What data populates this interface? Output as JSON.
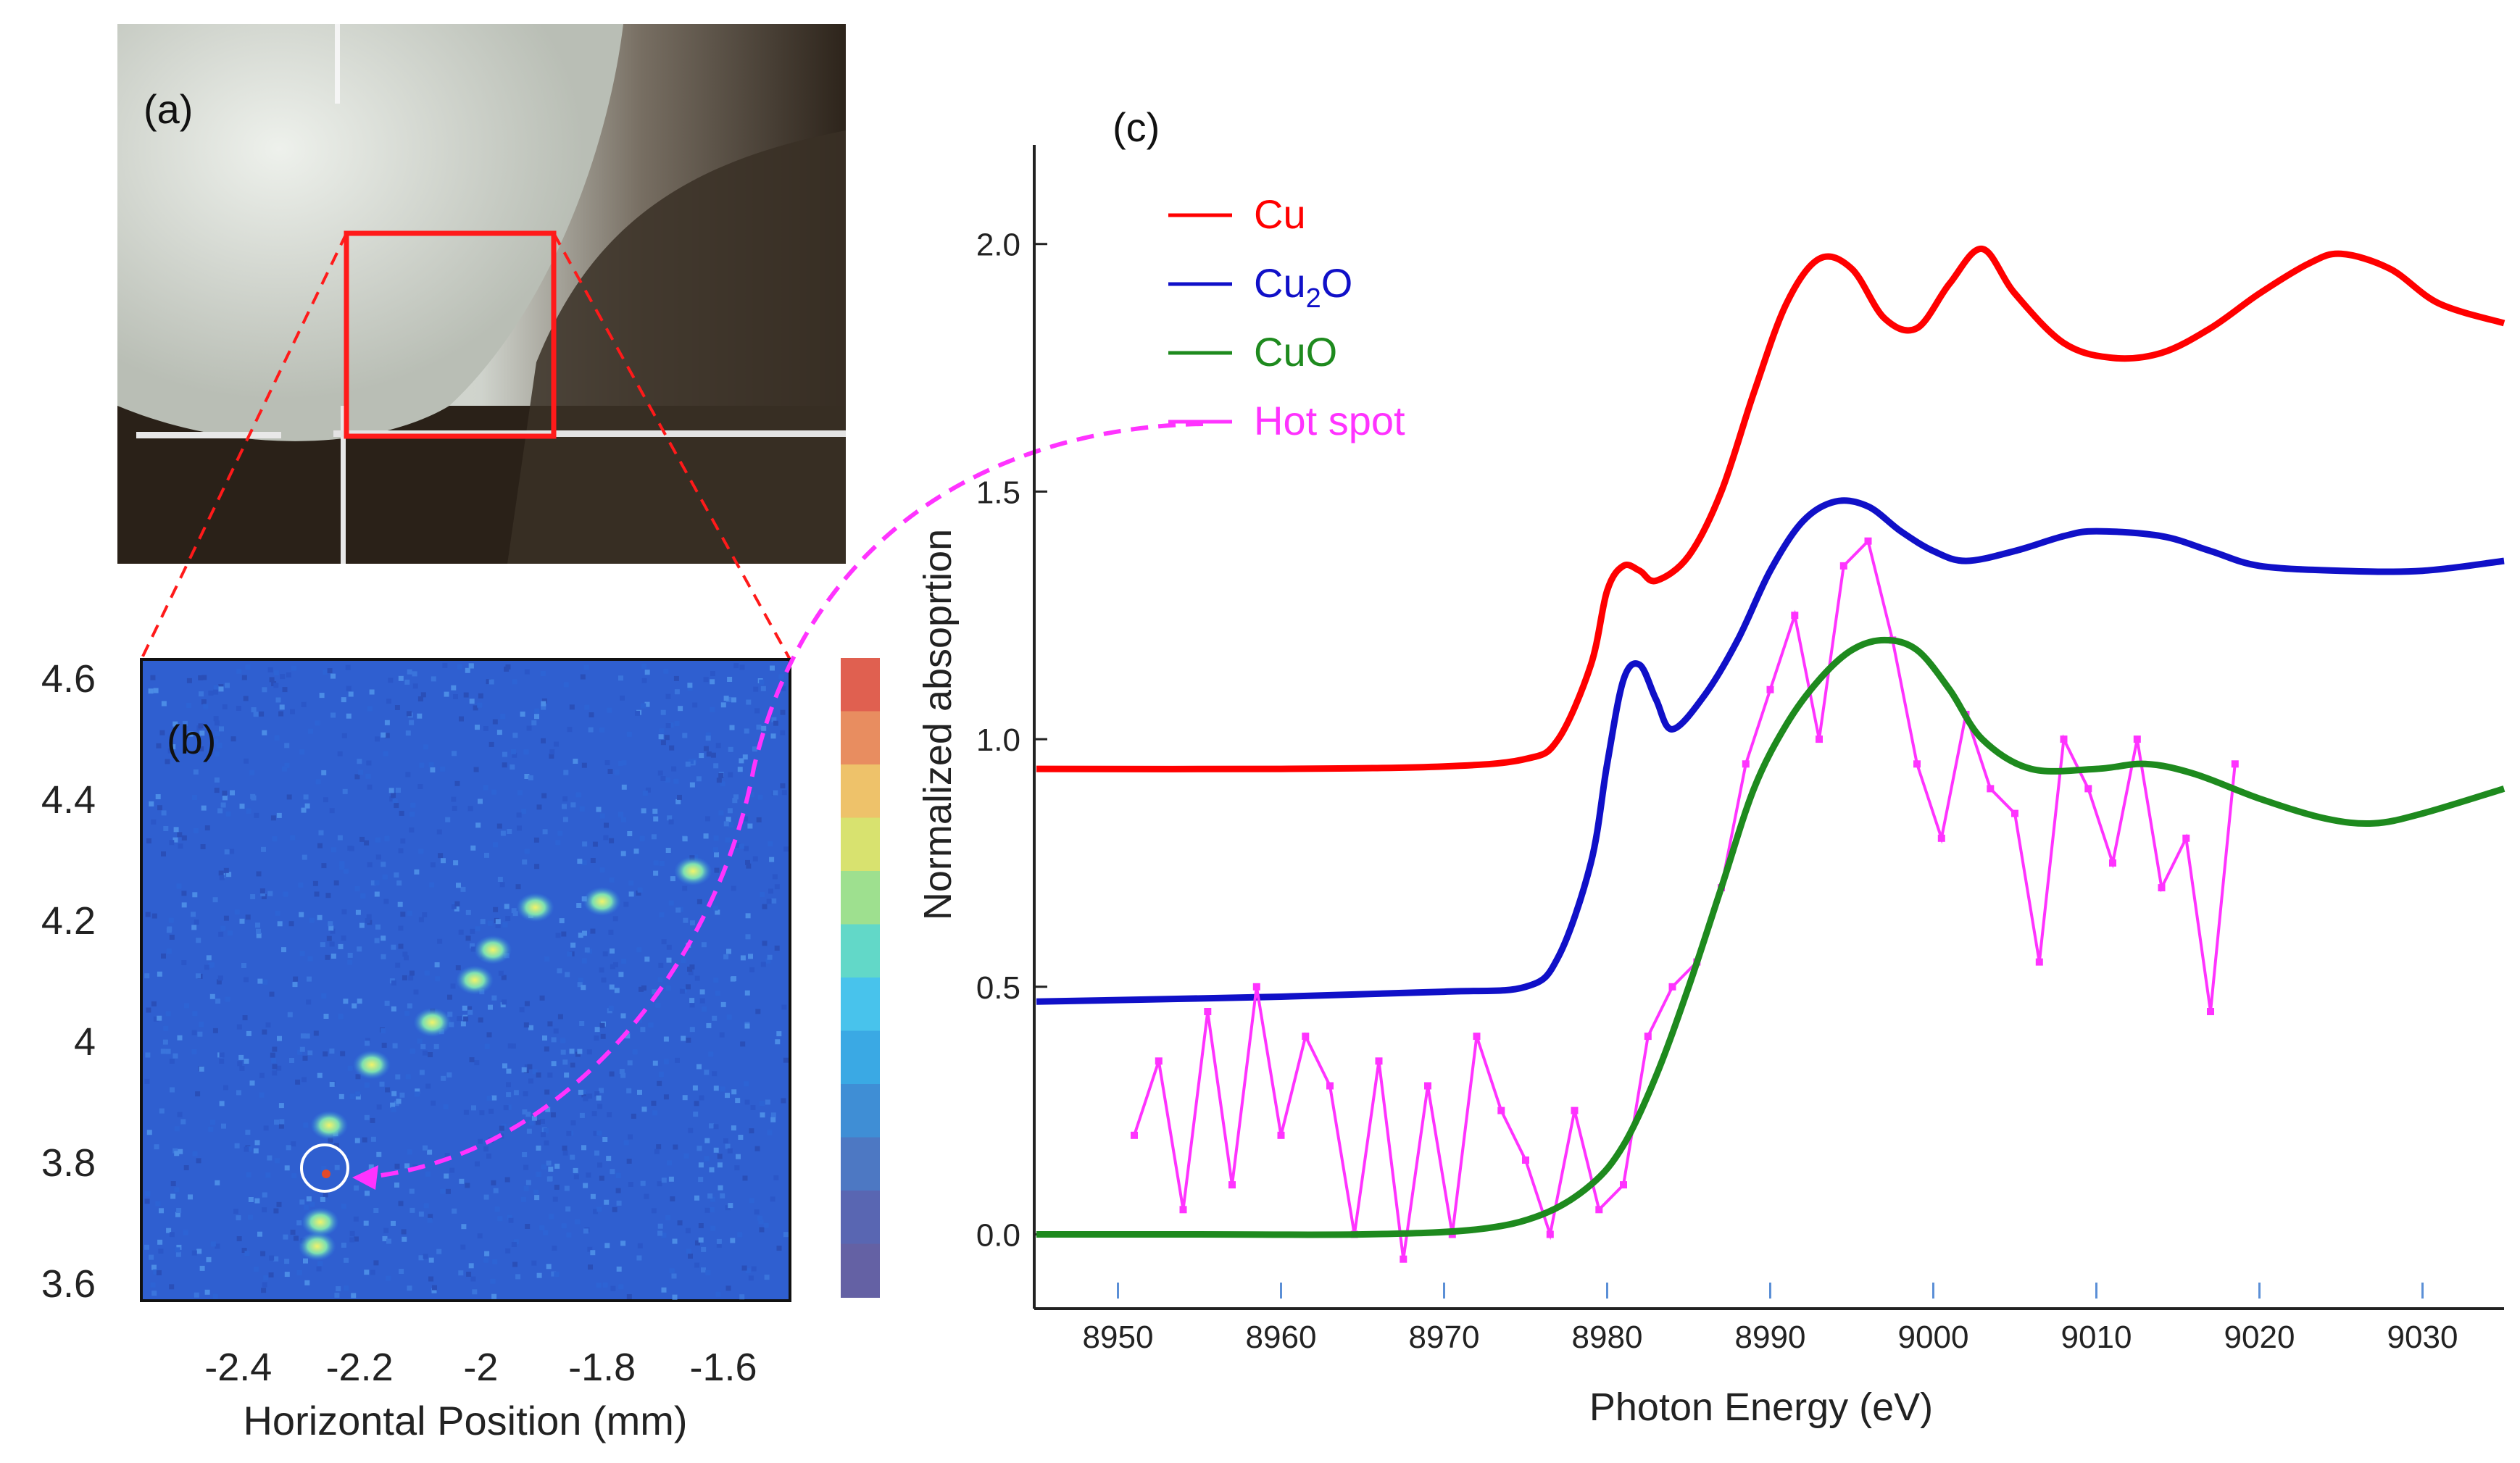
{
  "panel_a": {
    "label": "(a)",
    "description_colors": {
      "background_light": "#d9ddd6",
      "dark": "#2a2018",
      "roi": "#ff1a1a"
    }
  },
  "chart_data": [
    {
      "panel": "(b)",
      "type": "heatmap",
      "title": "(b)",
      "xlabel": "Horizontal Position (mm)",
      "ylabel": "",
      "xlim": [
        -2.56,
        -1.49
      ],
      "ylim": [
        3.57,
        4.63
      ],
      "x_ticks": [
        "-2.4",
        "-2.2",
        "-2",
        "-1.8",
        "-1.6"
      ],
      "x_tick_values": [
        -2.4,
        -2.2,
        -2.0,
        -1.8,
        -1.6
      ],
      "y_ticks": [
        "4.6",
        "4.4",
        "4.2",
        "4",
        "3.8",
        "3.6"
      ],
      "y_tick_values": [
        4.6,
        4.4,
        4.2,
        4.0,
        3.8,
        3.6
      ],
      "hot_spot": {
        "x": -2.27,
        "y": 3.77
      },
      "colorbar": [
        "#e06050",
        "#e88d60",
        "#eec26a",
        "#d8e26f",
        "#9ee08f",
        "#62d8c8",
        "#48c3ec",
        "#3aa9e4",
        "#3f8ed5",
        "#4d78c3",
        "#5966b2",
        "#6461a4"
      ]
    },
    {
      "panel": "(c)",
      "type": "line",
      "title": "(c)",
      "xlabel": "Photon Energy (eV)",
      "ylabel": "Normalized absoprtion",
      "xlim": [
        8945,
        9035
      ],
      "ylim": [
        -0.15,
        2.2
      ],
      "x_ticks": [
        "8950",
        "8960",
        "8970",
        "8980",
        "8990",
        "9000",
        "9010",
        "9020",
        "9030"
      ],
      "x_tick_values": [
        8950,
        8960,
        8970,
        8980,
        8990,
        9000,
        9010,
        9020,
        9030
      ],
      "y_ticks": [
        "0.0",
        "0.5",
        "1.0",
        "1.5",
        "2.0"
      ],
      "y_tick_values": [
        0,
        0.5,
        1.0,
        1.5,
        2.0
      ],
      "legend": {
        "position": "top-left",
        "entries": [
          {
            "name": "Cu",
            "color": "#ff0000"
          },
          {
            "name_main": "Cu",
            "name_sub": "2",
            "name_tail": "O",
            "color": "#1010c8"
          },
          {
            "name": "CuO",
            "color": "#1e8a1e"
          },
          {
            "name": "Hot spot",
            "color": "#ff33ff"
          }
        ]
      },
      "series": [
        {
          "name": "Cu",
          "color": "#ff0000",
          "x": [
            8945,
            8960,
            8970,
            8975,
            8977,
            8979,
            8980,
            8981,
            8982,
            8983,
            8985,
            8987,
            8989,
            8991,
            8993,
            8995,
            8997,
            8999,
            9001,
            9003,
            9005,
            9008,
            9011,
            9014,
            9017,
            9020,
            9023,
            9025,
            9028,
            9031,
            9035
          ],
          "y": [
            0.94,
            0.94,
            0.945,
            0.96,
            1.0,
            1.15,
            1.3,
            1.35,
            1.34,
            1.32,
            1.37,
            1.5,
            1.7,
            1.88,
            1.97,
            1.95,
            1.85,
            1.83,
            1.92,
            1.99,
            1.9,
            1.8,
            1.77,
            1.78,
            1.83,
            1.9,
            1.96,
            1.98,
            1.95,
            1.88,
            1.84
          ]
        },
        {
          "name": "Cu2O",
          "color": "#1010c8",
          "x": [
            8945,
            8960,
            8970,
            8975,
            8977,
            8979,
            8980,
            8981,
            8982,
            8983,
            8984,
            8986,
            8988,
            8990,
            8992,
            8994,
            8996,
            8998,
            9000,
            9002,
            9005,
            9008,
            9010,
            9014,
            9017,
            9020,
            9025,
            9030,
            9035
          ],
          "y": [
            0.47,
            0.48,
            0.49,
            0.5,
            0.56,
            0.75,
            0.95,
            1.12,
            1.15,
            1.08,
            1.02,
            1.09,
            1.2,
            1.34,
            1.44,
            1.48,
            1.47,
            1.42,
            1.38,
            1.36,
            1.38,
            1.41,
            1.42,
            1.41,
            1.38,
            1.35,
            1.34,
            1.34,
            1.36
          ]
        },
        {
          "name": "CuO",
          "color": "#1e8a1e",
          "x": [
            8945,
            8955,
            8965,
            8972,
            8976,
            8979,
            8981,
            8983,
            8985,
            8987,
            8989,
            8991,
            8993,
            8995,
            8997,
            8999,
            9001,
            9003,
            9006,
            9010,
            9013,
            9016,
            9020,
            9024,
            9027,
            9030,
            9035
          ],
          "y": [
            0.0,
            0.0,
            0.0,
            0.01,
            0.04,
            0.1,
            0.18,
            0.32,
            0.5,
            0.7,
            0.9,
            1.03,
            1.12,
            1.18,
            1.2,
            1.18,
            1.1,
            1.0,
            0.94,
            0.94,
            0.95,
            0.93,
            0.88,
            0.84,
            0.83,
            0.85,
            0.9
          ]
        },
        {
          "name": "Hot spot",
          "color": "#ff33ff",
          "markers": true,
          "x": [
            8951,
            8952.5,
            8954,
            8955.5,
            8957,
            8958.5,
            8960,
            8961.5,
            8963,
            8964.5,
            8966,
            8967.5,
            8969,
            8970.5,
            8972,
            8973.5,
            8975,
            8976.5,
            8978,
            8979.5,
            8981,
            8982.5,
            8984,
            8985.5,
            8987,
            8988.5,
            8990,
            8991.5,
            8993,
            8994.5,
            8996,
            8997.5,
            8999,
            9000.5,
            9002,
            9003.5,
            9005,
            9006.5,
            9008,
            9009.5,
            9011,
            9012.5,
            9014,
            9015.5,
            9017,
            9018.5
          ],
          "y": [
            0.2,
            0.35,
            0.05,
            0.45,
            0.1,
            0.5,
            0.2,
            0.4,
            0.3,
            0.0,
            0.35,
            -0.05,
            0.3,
            0.0,
            0.4,
            0.25,
            0.15,
            0.0,
            0.25,
            0.05,
            0.1,
            0.4,
            0.5,
            0.55,
            0.7,
            0.95,
            1.1,
            1.25,
            1.0,
            1.35,
            1.4,
            1.2,
            0.95,
            0.8,
            1.05,
            0.9,
            0.85,
            0.55,
            1.0,
            0.9,
            0.75,
            1.0,
            0.7,
            0.8,
            0.45,
            0.95
          ]
        }
      ]
    }
  ]
}
